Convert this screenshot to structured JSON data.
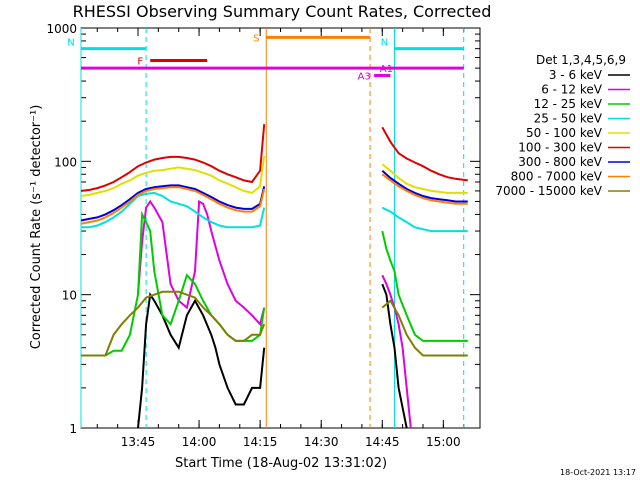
{
  "chart_data": {
    "type": "line",
    "title": "RHESSI Observing Summary Count Rates, Corrected",
    "xlabel": "Start Time (18-Aug-02 13:31:02)",
    "ylabel": "Corrected Count Rate (s⁻¹ detector⁻¹)",
    "yscale": "log",
    "ylim": [
      1,
      1000
    ],
    "xlim_minutes": [
      0,
      98
    ],
    "x_ticks": [
      "13:45",
      "14:00",
      "14:15",
      "14:30",
      "14:45",
      "15:00"
    ],
    "y_ticks": [
      "1",
      "10",
      "100",
      "1000"
    ],
    "legend_title": "Det 1,3,4,5,6,9",
    "legend_position": "right",
    "footer": "18-Oct-2021 13:17",
    "series": [
      {
        "name": "3 - 6 keV",
        "color": "#000000",
        "x": [
          14,
          15,
          16,
          17,
          18,
          20,
          22,
          24,
          26,
          28,
          30,
          32,
          33,
          34,
          36,
          38,
          40,
          42,
          44,
          45,
          73,
          74,
          75,
          76,
          77,
          78,
          80
        ],
        "y": [
          1,
          2,
          6,
          10,
          9,
          7,
          5,
          4,
          7,
          9,
          7,
          5,
          4,
          3,
          2,
          1.5,
          1.5,
          2,
          2,
          4,
          null,
          12,
          10,
          6,
          4,
          2,
          1
        ]
      },
      {
        "name": "6 - 12 keV",
        "color": "#e000e0",
        "x": [
          14,
          15,
          16,
          17,
          18,
          20,
          22,
          24,
          26,
          28,
          29,
          30,
          31,
          32,
          34,
          36,
          38,
          40,
          42,
          44,
          45,
          73,
          74,
          75,
          76,
          77,
          78,
          79,
          80,
          81
        ],
        "y": [
          10,
          25,
          45,
          50,
          45,
          35,
          12,
          9,
          8,
          15,
          50,
          48,
          40,
          30,
          18,
          12,
          9,
          8,
          7,
          6,
          8,
          null,
          14,
          12,
          10,
          8,
          6,
          4,
          2,
          1
        ]
      },
      {
        "name": "12 - 25 keV",
        "color": "#00cc00",
        "x": [
          0,
          2,
          4,
          6,
          8,
          10,
          12,
          14,
          15,
          16,
          17,
          18,
          20,
          22,
          24,
          26,
          28,
          30,
          32,
          34,
          36,
          38,
          40,
          42,
          44,
          45,
          73,
          74,
          75,
          76,
          77,
          78,
          80,
          82,
          84,
          86,
          88,
          90,
          92,
          95
        ],
        "y": [
          3.5,
          3.5,
          3.5,
          3.5,
          3.8,
          3.8,
          5,
          10,
          40,
          35,
          30,
          15,
          7,
          6,
          9,
          14,
          12,
          9,
          7,
          6,
          5,
          4.5,
          4.5,
          4.5,
          5,
          8,
          null,
          30,
          22,
          18,
          15,
          10,
          7,
          5,
          4.5,
          4.5,
          4.5,
          4.5,
          4.5,
          4.5
        ]
      },
      {
        "name": "25 - 50 keV",
        "color": "#00e0e0",
        "x": [
          0,
          2,
          4,
          6,
          8,
          10,
          12,
          14,
          16,
          18,
          20,
          22,
          24,
          26,
          28,
          30,
          32,
          34,
          36,
          38,
          40,
          42,
          44,
          45,
          73,
          74,
          76,
          78,
          80,
          82,
          84,
          86,
          88,
          90,
          92,
          95
        ],
        "y": [
          32,
          32,
          33,
          35,
          38,
          42,
          48,
          55,
          57,
          58,
          55,
          50,
          48,
          46,
          42,
          38,
          35,
          33,
          32,
          32,
          32,
          32,
          33,
          45,
          null,
          45,
          42,
          38,
          35,
          32,
          31,
          30,
          30,
          30,
          30,
          30
        ]
      },
      {
        "name": "50 - 100 keV",
        "color": "#e0e000",
        "x": [
          0,
          2,
          4,
          6,
          8,
          10,
          12,
          14,
          16,
          18,
          20,
          22,
          24,
          26,
          28,
          30,
          32,
          34,
          36,
          38,
          40,
          42,
          44,
          45,
          73,
          74,
          76,
          78,
          80,
          82,
          84,
          86,
          88,
          90,
          92,
          95
        ],
        "y": [
          55,
          56,
          58,
          60,
          63,
          68,
          72,
          78,
          82,
          85,
          86,
          88,
          90,
          88,
          86,
          82,
          78,
          72,
          68,
          64,
          60,
          58,
          65,
          110,
          null,
          95,
          85,
          75,
          68,
          64,
          62,
          60,
          59,
          58,
          58,
          58
        ]
      },
      {
        "name": "100 - 300 keV",
        "color": "#e00000",
        "x": [
          0,
          2,
          4,
          6,
          8,
          10,
          12,
          14,
          16,
          18,
          20,
          22,
          24,
          26,
          28,
          30,
          32,
          34,
          36,
          38,
          40,
          42,
          44,
          45,
          73,
          74,
          76,
          78,
          80,
          82,
          84,
          86,
          88,
          90,
          92,
          95
        ],
        "y": [
          60,
          61,
          63,
          66,
          70,
          76,
          83,
          92,
          98,
          103,
          106,
          108,
          108,
          106,
          103,
          98,
          92,
          85,
          80,
          76,
          72,
          70,
          85,
          190,
          null,
          180,
          140,
          115,
          105,
          98,
          92,
          85,
          80,
          76,
          74,
          72
        ]
      },
      {
        "name": "300 - 800 keV",
        "color": "#0000e0",
        "x": [
          0,
          2,
          4,
          6,
          8,
          10,
          12,
          14,
          16,
          18,
          20,
          22,
          24,
          26,
          28,
          30,
          32,
          34,
          36,
          38,
          40,
          42,
          44,
          45,
          73,
          74,
          76,
          78,
          80,
          82,
          84,
          86,
          88,
          90,
          92,
          95
        ],
        "y": [
          36,
          37,
          38,
          40,
          43,
          47,
          52,
          58,
          62,
          64,
          65,
          66,
          66,
          64,
          62,
          58,
          54,
          50,
          47,
          45,
          44,
          44,
          48,
          65,
          null,
          85,
          75,
          68,
          62,
          58,
          55,
          53,
          52,
          51,
          50,
          50
        ]
      },
      {
        "name": "800 - 7000 keV",
        "color": "#ff8000",
        "x": [
          0,
          2,
          4,
          6,
          8,
          10,
          12,
          14,
          16,
          18,
          20,
          22,
          24,
          26,
          28,
          30,
          32,
          34,
          36,
          38,
          40,
          42,
          44,
          45,
          73,
          74,
          76,
          78,
          80,
          82,
          84,
          86,
          88,
          90,
          92,
          95
        ],
        "y": [
          34,
          35,
          36,
          38,
          41,
          45,
          50,
          56,
          60,
          62,
          63,
          64,
          64,
          62,
          60,
          56,
          52,
          48,
          45,
          43,
          42,
          42,
          46,
          62,
          null,
          80,
          72,
          65,
          60,
          56,
          53,
          51,
          50,
          49,
          48,
          48
        ]
      },
      {
        "name": "7000 - 15000 keV",
        "color": "#808000",
        "x": [
          0,
          2,
          4,
          6,
          8,
          10,
          12,
          14,
          16,
          18,
          20,
          22,
          24,
          26,
          28,
          30,
          32,
          34,
          36,
          38,
          40,
          42,
          44,
          45,
          73,
          74,
          76,
          78,
          80,
          82,
          84,
          86,
          88,
          90,
          92,
          95
        ],
        "y": [
          3.5,
          3.5,
          3.5,
          3.5,
          5,
          6,
          7,
          8,
          9.5,
          10,
          10.5,
          10.5,
          10.5,
          10,
          9.5,
          8,
          7,
          6,
          5,
          4.5,
          4.5,
          5,
          5,
          6,
          null,
          8,
          9,
          7,
          5,
          4,
          3.5,
          3.5,
          3.5,
          3.5,
          3.5,
          3.5
        ]
      }
    ],
    "annotations": {
      "intervals": [
        {
          "label": "N",
          "color": "#00e0e0",
          "start": 0,
          "end": 16,
          "level": 700
        },
        {
          "label": "N",
          "color": "#00e0e0",
          "start": 77,
          "end": 94,
          "level": 700
        },
        {
          "label": "F",
          "color": "#e00000",
          "start": 17,
          "end": 31,
          "level": 570
        },
        {
          "label": "S",
          "color": "#ff8000",
          "start": 45.5,
          "end": 71,
          "level": 850
        },
        {
          "label": "A1",
          "color": "#e000e0",
          "start": 0,
          "end": 94,
          "level": 500
        },
        {
          "label": "A3",
          "color": "#e000e0",
          "start": 72,
          "end": 76,
          "level": 440
        }
      ],
      "vlines": [
        {
          "x": 0,
          "color": "#00e0e0",
          "style": "solid"
        },
        {
          "x": 16,
          "color": "#00e0e0",
          "style": "dashed"
        },
        {
          "x": 45.5,
          "color": "#ff8000",
          "style": "solid"
        },
        {
          "x": 71,
          "color": "#ff8000",
          "style": "dashed"
        },
        {
          "x": 77,
          "color": "#00e0e0",
          "style": "solid"
        },
        {
          "x": 94,
          "color": "#00e0e0",
          "style": "dashed"
        }
      ]
    }
  }
}
